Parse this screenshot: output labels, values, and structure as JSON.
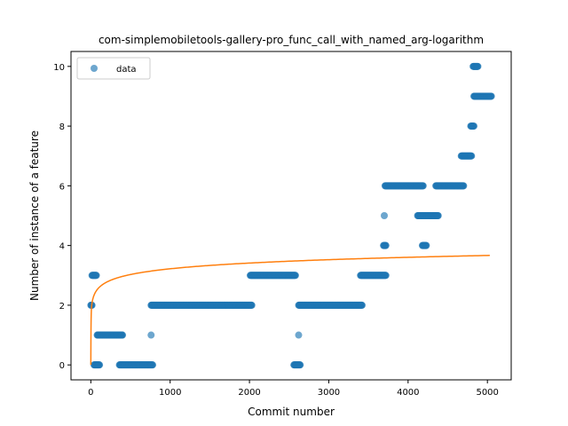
{
  "chart_data": {
    "type": "scatter",
    "title": "com-simplemobiletools-gallery-pro_func_call_with_named_arg-logarithm",
    "xlabel": "Commit number",
    "ylabel": "Number of instance of a feature",
    "xlim": [
      -250,
      5300
    ],
    "ylim": [
      -0.5,
      10.5
    ],
    "xticks": [
      0,
      1000,
      2000,
      3000,
      4000,
      5000
    ],
    "yticks": [
      0,
      2,
      4,
      6,
      8,
      10
    ],
    "grid": false,
    "legend": {
      "position": "top-left",
      "entries": [
        "data"
      ]
    },
    "colors": {
      "points": "#1f77b4",
      "fit": "#ff7f0e"
    },
    "series": [
      {
        "name": "data",
        "kind": "scatter",
        "segments": [
          {
            "x_start": 0,
            "x_end": 15,
            "y": 2
          },
          {
            "x_start": 15,
            "x_end": 70,
            "y": 3
          },
          {
            "x_start": 40,
            "x_end": 110,
            "y": 0
          },
          {
            "x_start": 80,
            "x_end": 400,
            "y": 1
          },
          {
            "x_start": 360,
            "x_end": 780,
            "y": 0
          },
          {
            "x_start": 760,
            "x_end": 2030,
            "y": 2
          },
          {
            "x_start": 2010,
            "x_end": 2580,
            "y": 3
          },
          {
            "x_start": 2560,
            "x_end": 2640,
            "y": 0
          },
          {
            "x_start": 2620,
            "x_end": 3420,
            "y": 2
          },
          {
            "x_start": 3400,
            "x_end": 3720,
            "y": 3
          },
          {
            "x_start": 3690,
            "x_end": 3720,
            "y": 4
          },
          {
            "x_start": 3710,
            "x_end": 4190,
            "y": 6
          },
          {
            "x_start": 4120,
            "x_end": 4380,
            "y": 5
          },
          {
            "x_start": 4180,
            "x_end": 4230,
            "y": 4
          },
          {
            "x_start": 4350,
            "x_end": 4700,
            "y": 6
          },
          {
            "x_start": 4670,
            "x_end": 4800,
            "y": 7
          },
          {
            "x_start": 4790,
            "x_end": 4830,
            "y": 8
          },
          {
            "x_start": 4820,
            "x_end": 4880,
            "y": 10
          },
          {
            "x_start": 4830,
            "x_end": 5050,
            "y": 9
          }
        ],
        "points": [
          {
            "x": 760,
            "y": 1
          },
          {
            "x": 2620,
            "y": 1
          },
          {
            "x": 3700,
            "y": 5
          }
        ]
      },
      {
        "name": "",
        "kind": "line",
        "model": "logarithm",
        "params": {
          "a": 0.2777,
          "b": 1.3016
        },
        "x_range": [
          0,
          5030
        ]
      }
    ]
  }
}
